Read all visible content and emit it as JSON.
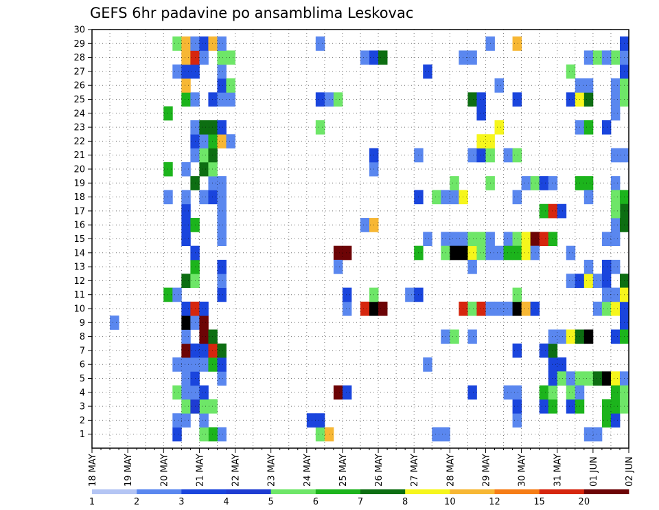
{
  "chart_data": {
    "type": "heatmap",
    "title": "GEFS 6hr padavine po ansamblima Leskovac",
    "xlabel": "",
    "ylabel": "",
    "x_ticks": [
      "18 MAY",
      "19 MAY",
      "20 MAY",
      "21 MAY",
      "22 MAY",
      "23 MAY",
      "24 MAY",
      "25 MAY",
      "26 MAY",
      "27 MAY",
      "28 MAY",
      "29 MAY",
      "30 MAY",
      "31 MAY",
      "01 JUN",
      "02 JUN"
    ],
    "y_ticks": [
      "1",
      "2",
      "3",
      "4",
      "5",
      "6",
      "7",
      "8",
      "9",
      "10",
      "11",
      "12",
      "13",
      "14",
      "15",
      "16",
      "17",
      "18",
      "19",
      "20",
      "21",
      "22",
      "23",
      "24",
      "25",
      "26",
      "27",
      "28",
      "29",
      "30"
    ],
    "ylim": [
      0,
      30
    ],
    "time_step_hours": 6,
    "grid": "dotted",
    "legend": {
      "placement": "bottom",
      "levels": [
        "1",
        "2",
        "3",
        "4",
        "5",
        "6",
        "7",
        "8",
        "10",
        "12",
        "15",
        "20"
      ],
      "colors": [
        "#b4c5f4",
        "#5a87ef",
        "#1a45dd",
        "#1e3cd2",
        "#6ee668",
        "#1cb41c",
        "#0d6e12",
        "#f6f61c",
        "#f7b734",
        "#f67d16",
        "#d6260e",
        "#6d0406"
      ]
    },
    "cells": [
      [
        20.5,
        0,
        2
      ],
      [
        21.0,
        0,
        2
      ],
      [
        21.5,
        0,
        2
      ],
      [
        21.5,
        1,
        1
      ],
      [
        21.25,
        1,
        5
      ],
      [
        21.0,
        1,
        4
      ],
      [
        20.25,
        1,
        2
      ],
      [
        20.25,
        2,
        1
      ],
      [
        20.5,
        2,
        1
      ],
      [
        21.0,
        2,
        1
      ],
      [
        20.5,
        3,
        4
      ],
      [
        20.75,
        3,
        4
      ],
      [
        21.0,
        3,
        4
      ],
      [
        21.25,
        3,
        4
      ],
      [
        20.75,
        3,
        3
      ],
      [
        20.25,
        4,
        4
      ],
      [
        20.5,
        4,
        1
      ],
      [
        20.75,
        4,
        1
      ],
      [
        21.0,
        4,
        2
      ],
      [
        20.5,
        5,
        1
      ],
      [
        20.75,
        5,
        2
      ],
      [
        21.5,
        5,
        1
      ],
      [
        20.25,
        6,
        1
      ],
      [
        20.5,
        6,
        1
      ],
      [
        20.75,
        6,
        1
      ],
      [
        21.0,
        6,
        1
      ],
      [
        21.25,
        6,
        5
      ],
      [
        21.5,
        6,
        2
      ],
      [
        20.5,
        7,
        11
      ],
      [
        20.75,
        7,
        2
      ],
      [
        21.0,
        7,
        2
      ],
      [
        21.25,
        7,
        10
      ],
      [
        21.5,
        7,
        6
      ],
      [
        20.5,
        8,
        1
      ],
      [
        21.0,
        8,
        11
      ],
      [
        21.25,
        8,
        6
      ],
      [
        20.5,
        9,
        12
      ],
      [
        20.75,
        9,
        1
      ],
      [
        21.0,
        9,
        11
      ],
      [
        18.5,
        9,
        1
      ],
      [
        20.5,
        10,
        2
      ],
      [
        20.75,
        10,
        10
      ],
      [
        21.0,
        10,
        2
      ],
      [
        20.0,
        11,
        5
      ],
      [
        20.25,
        11,
        1
      ],
      [
        21.5,
        11,
        2
      ],
      [
        20.5,
        12,
        6
      ],
      [
        20.75,
        12,
        4
      ],
      [
        21.5,
        12,
        1
      ],
      [
        20.75,
        13,
        5
      ],
      [
        21.5,
        13,
        2
      ],
      [
        20.75,
        14,
        2
      ],
      [
        20.5,
        15,
        2
      ],
      [
        21.5,
        15,
        1
      ],
      [
        20.5,
        16,
        2
      ],
      [
        20.75,
        16,
        5
      ],
      [
        21.5,
        16,
        1
      ],
      [
        20.5,
        17,
        2
      ],
      [
        21.5,
        17,
        1
      ],
      [
        20.0,
        18,
        1
      ],
      [
        20.5,
        18,
        1
      ],
      [
        21.0,
        18,
        1
      ],
      [
        21.25,
        18,
        2
      ],
      [
        21.5,
        18,
        1
      ],
      [
        20.75,
        19,
        6
      ],
      [
        21.25,
        19,
        1
      ],
      [
        21.5,
        19,
        1
      ],
      [
        20.0,
        20,
        5
      ],
      [
        20.5,
        20,
        1
      ],
      [
        21.0,
        20,
        6
      ],
      [
        21.25,
        20,
        4
      ],
      [
        20.75,
        21,
        1
      ],
      [
        21.0,
        21,
        4
      ],
      [
        21.25,
        21,
        6
      ],
      [
        20.75,
        22,
        2
      ],
      [
        21.0,
        22,
        1
      ],
      [
        21.25,
        22,
        5
      ],
      [
        21.5,
        22,
        8
      ],
      [
        21.75,
        22,
        1
      ],
      [
        20.75,
        23,
        1
      ],
      [
        21.0,
        23,
        6
      ],
      [
        21.25,
        23,
        6
      ],
      [
        21.5,
        23,
        2
      ],
      [
        20.0,
        24,
        5
      ],
      [
        20.5,
        25,
        5
      ],
      [
        20.75,
        25,
        1
      ],
      [
        21.25,
        25,
        2
      ],
      [
        21.5,
        25,
        1
      ],
      [
        21.75,
        25,
        1
      ],
      [
        20.5,
        26,
        8
      ],
      [
        21.5,
        26,
        2
      ],
      [
        21.75,
        26,
        4
      ],
      [
        20.25,
        27,
        1
      ],
      [
        20.5,
        27,
        2
      ],
      [
        20.75,
        27,
        2
      ],
      [
        21.5,
        27,
        1
      ],
      [
        20.5,
        28,
        8
      ],
      [
        20.75,
        28,
        10
      ],
      [
        21.0,
        28,
        1
      ],
      [
        21.5,
        28,
        4
      ],
      [
        21.75,
        28,
        4
      ],
      [
        20.25,
        29,
        4
      ],
      [
        20.5,
        29,
        8
      ],
      [
        20.75,
        29,
        1
      ],
      [
        21.0,
        29,
        2
      ],
      [
        21.25,
        29,
        8
      ],
      [
        21.5,
        29,
        1
      ],
      [
        20.5,
        30,
        1
      ],
      [
        20.75,
        30,
        4
      ],
      [
        21.5,
        30,
        2
      ],
      [
        21.75,
        30,
        1
      ],
      [
        24.25,
        1,
        4
      ],
      [
        24.5,
        1,
        8
      ],
      [
        24.0,
        2,
        2
      ],
      [
        24.25,
        2,
        2
      ],
      [
        24.75,
        4,
        11
      ],
      [
        25.0,
        4,
        2
      ],
      [
        24.25,
        23,
        4
      ],
      [
        24.25,
        25,
        2
      ],
      [
        24.5,
        25,
        1
      ],
      [
        24.75,
        25,
        4
      ],
      [
        24.25,
        29,
        1
      ],
      [
        25.0,
        10,
        1
      ],
      [
        25.0,
        11,
        2
      ],
      [
        24.75,
        14,
        11
      ],
      [
        25.0,
        14,
        11
      ],
      [
        24.75,
        13,
        1
      ],
      [
        25.5,
        10,
        10
      ],
      [
        25.75,
        10,
        12
      ],
      [
        26.0,
        10,
        11
      ],
      [
        25.75,
        11,
        4
      ],
      [
        25.5,
        16,
        1
      ],
      [
        25.75,
        16,
        8
      ],
      [
        25.5,
        28,
        1
      ],
      [
        25.75,
        28,
        2
      ],
      [
        26.0,
        28,
        6
      ],
      [
        25.75,
        20,
        1
      ],
      [
        25.75,
        21,
        2
      ],
      [
        26.75,
        11,
        1
      ],
      [
        27.0,
        11,
        2
      ],
      [
        27.0,
        21,
        1
      ],
      [
        27.25,
        6,
        1
      ],
      [
        27.0,
        14,
        5
      ],
      [
        27.25,
        15,
        1
      ],
      [
        27.0,
        18,
        2
      ],
      [
        27.25,
        27,
        2
      ],
      [
        27.0,
        30,
        6
      ],
      [
        27.25,
        30,
        6
      ],
      [
        27.5,
        30,
        7
      ],
      [
        27.75,
        30,
        4
      ],
      [
        27.25,
        0,
        1
      ],
      [
        27.5,
        0,
        5
      ],
      [
        27.75,
        0,
        4
      ],
      [
        28.0,
        0,
        6
      ],
      [
        27.5,
        1,
        1
      ],
      [
        27.75,
        1,
        1
      ],
      [
        27.75,
        8,
        1
      ],
      [
        28.0,
        8,
        4
      ],
      [
        27.5,
        18,
        4
      ],
      [
        27.75,
        18,
        1
      ],
      [
        28.0,
        18,
        1
      ],
      [
        28.25,
        18,
        7
      ],
      [
        27.75,
        15,
        1
      ],
      [
        28.0,
        15,
        1
      ],
      [
        28.25,
        15,
        1
      ],
      [
        27.75,
        14,
        4
      ],
      [
        28.0,
        14,
        13
      ],
      [
        28.25,
        14,
        12
      ],
      [
        28.5,
        14,
        7
      ],
      [
        28.75,
        14,
        4
      ],
      [
        29.0,
        14,
        1
      ],
      [
        29.25,
        14,
        1
      ],
      [
        28.25,
        10,
        10
      ],
      [
        28.5,
        10,
        4
      ],
      [
        28.75,
        10,
        10
      ],
      [
        29.0,
        10,
        1
      ],
      [
        29.25,
        10,
        1
      ],
      [
        29.5,
        10,
        1
      ],
      [
        29.75,
        10,
        12
      ],
      [
        30.0,
        10,
        8
      ],
      [
        30.25,
        10,
        2
      ],
      [
        28.0,
        19,
        4
      ],
      [
        28.25,
        28,
        1
      ],
      [
        28.5,
        28,
        1
      ],
      [
        28.5,
        13,
        1
      ],
      [
        28.5,
        8,
        1
      ],
      [
        28.5,
        4,
        2
      ],
      [
        28.5,
        21,
        1
      ],
      [
        28.75,
        21,
        2
      ],
      [
        29.0,
        21,
        4
      ],
      [
        29.5,
        21,
        1
      ],
      [
        29.75,
        21,
        4
      ],
      [
        28.5,
        25,
        6
      ],
      [
        28.75,
        25,
        2
      ],
      [
        28.75,
        24,
        2
      ],
      [
        28.75,
        22,
        7
      ],
      [
        29.0,
        22,
        7
      ],
      [
        29.25,
        23,
        7
      ],
      [
        29.25,
        26,
        1
      ],
      [
        29.0,
        19,
        4
      ],
      [
        29.0,
        29,
        1
      ],
      [
        28.75,
        30,
        2
      ],
      [
        28.5,
        15,
        4
      ],
      [
        28.75,
        15,
        4
      ],
      [
        29.0,
        15,
        1
      ],
      [
        29.5,
        15,
        1
      ],
      [
        29.75,
        15,
        4
      ],
      [
        30.0,
        15,
        7
      ],
      [
        30.25,
        15,
        11
      ],
      [
        30.5,
        15,
        10
      ],
      [
        30.75,
        15,
        5
      ],
      [
        29.5,
        14,
        5
      ],
      [
        29.75,
        14,
        5
      ],
      [
        30.0,
        14,
        7
      ],
      [
        30.25,
        14,
        1
      ],
      [
        29.75,
        18,
        1
      ],
      [
        29.75,
        7,
        2
      ],
      [
        29.75,
        11,
        4
      ],
      [
        29.75,
        25,
        2
      ],
      [
        29.75,
        29,
        8
      ],
      [
        29.75,
        30,
        2
      ],
      [
        29.75,
        2,
        1
      ],
      [
        29.75,
        3,
        2
      ],
      [
        29.5,
        4,
        1
      ],
      [
        29.75,
        4,
        1
      ],
      [
        30.0,
        19,
        1
      ],
      [
        30.5,
        17,
        5
      ],
      [
        30.75,
        17,
        10
      ],
      [
        31.0,
        17,
        2
      ],
      [
        30.25,
        19,
        4
      ],
      [
        30.5,
        19,
        2
      ],
      [
        30.75,
        19,
        1
      ],
      [
        30.5,
        3,
        2
      ],
      [
        30.75,
        3,
        5
      ],
      [
        30.5,
        4,
        5
      ],
      [
        30.75,
        4,
        4
      ],
      [
        30.75,
        6,
        2
      ],
      [
        31.0,
        6,
        2
      ],
      [
        30.5,
        7,
        2
      ],
      [
        30.75,
        7,
        6
      ],
      [
        30.75,
        8,
        1
      ],
      [
        31.0,
        8,
        1
      ],
      [
        31.25,
        8,
        7
      ],
      [
        30.75,
        5,
        2
      ],
      [
        31.0,
        5,
        4
      ],
      [
        31.25,
        5,
        1
      ],
      [
        31.5,
        5,
        4
      ],
      [
        31.75,
        5,
        4
      ],
      [
        32.0,
        5,
        6
      ],
      [
        32.25,
        5,
        12
      ],
      [
        32.5,
        5,
        7
      ],
      [
        32.75,
        5,
        1
      ],
      [
        31.25,
        0,
        2
      ],
      [
        31.5,
        0,
        2
      ],
      [
        31.25,
        3,
        2
      ],
      [
        31.5,
        3,
        5
      ],
      [
        31.25,
        4,
        4
      ],
      [
        31.5,
        4,
        1
      ],
      [
        31.5,
        8,
        6
      ],
      [
        31.75,
        8,
        13
      ],
      [
        31.25,
        14,
        1
      ],
      [
        31.25,
        25,
        2
      ],
      [
        31.5,
        25,
        7
      ],
      [
        31.75,
        25,
        6
      ],
      [
        31.25,
        27,
        4
      ],
      [
        31.5,
        26,
        1
      ],
      [
        31.75,
        26,
        1
      ],
      [
        31.75,
        28,
        1
      ],
      [
        32.0,
        28,
        4
      ],
      [
        32.25,
        28,
        1
      ],
      [
        31.75,
        30,
        1
      ],
      [
        31.5,
        23,
        1
      ],
      [
        31.75,
        23,
        5
      ],
      [
        32.25,
        23,
        2
      ],
      [
        31.5,
        19,
        5
      ],
      [
        31.75,
        19,
        5
      ],
      [
        32.5,
        19,
        1
      ],
      [
        31.75,
        18,
        1
      ],
      [
        32.5,
        18,
        4
      ],
      [
        32.75,
        18,
        5
      ],
      [
        32.75,
        17,
        6
      ],
      [
        31.75,
        1,
        1
      ],
      [
        32.0,
        1,
        1
      ],
      [
        32.0,
        0,
        2
      ],
      [
        32.25,
        0,
        2
      ],
      [
        32.5,
        0,
        1
      ],
      [
        31.25,
        12,
        1
      ],
      [
        31.5,
        12,
        2
      ],
      [
        31.75,
        12,
        7
      ],
      [
        32.0,
        12,
        1
      ],
      [
        32.25,
        12,
        2
      ],
      [
        32.75,
        12,
        6
      ],
      [
        31.75,
        13,
        1
      ],
      [
        32.5,
        13,
        1
      ],
      [
        32.25,
        13,
        2
      ],
      [
        32.0,
        10,
        1
      ],
      [
        32.25,
        10,
        4
      ],
      [
        32.5,
        10,
        7
      ],
      [
        32.75,
        10,
        2
      ],
      [
        32.25,
        11,
        1
      ],
      [
        32.5,
        11,
        1
      ],
      [
        32.75,
        11,
        7
      ],
      [
        32.75,
        9,
        2
      ],
      [
        32.25,
        2,
        5
      ],
      [
        32.5,
        2,
        2
      ],
      [
        32.25,
        3,
        5
      ],
      [
        32.5,
        3,
        5
      ],
      [
        32.75,
        3,
        4
      ],
      [
        32.5,
        4,
        5
      ],
      [
        32.75,
        4,
        4
      ],
      [
        32.5,
        8,
        2
      ],
      [
        32.75,
        8,
        5
      ],
      [
        32.5,
        16,
        1
      ],
      [
        32.5,
        17,
        4
      ],
      [
        32.75,
        16,
        6
      ],
      [
        32.25,
        15,
        1
      ],
      [
        32.5,
        15,
        1
      ],
      [
        32.5,
        24,
        1
      ],
      [
        32.5,
        25,
        1
      ],
      [
        32.75,
        25,
        4
      ],
      [
        32.5,
        26,
        1
      ],
      [
        32.75,
        26,
        4
      ],
      [
        32.75,
        27,
        2
      ],
      [
        32.5,
        28,
        4
      ],
      [
        32.75,
        28,
        1
      ],
      [
        32.75,
        29,
        2
      ],
      [
        32.25,
        28,
        1
      ],
      [
        32.75,
        21,
        1
      ],
      [
        32.5,
        21,
        1
      ]
    ]
  }
}
